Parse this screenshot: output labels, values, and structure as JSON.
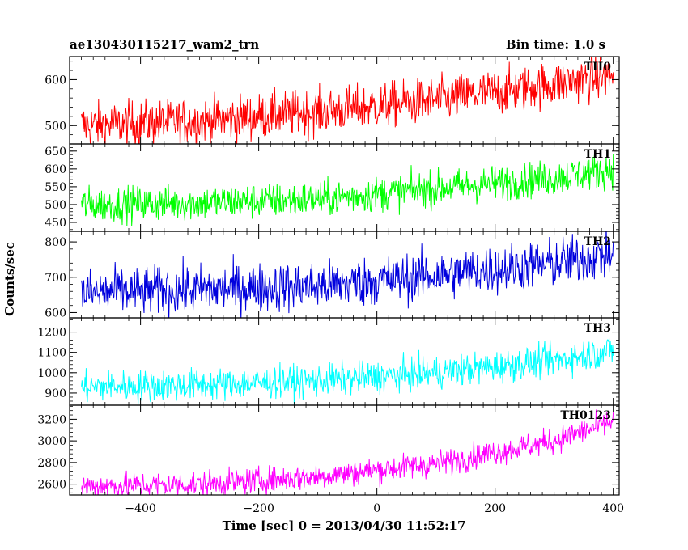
{
  "header": {
    "source_name": "ae130430115217_wam2_trn",
    "bin_time": "Bin time: 1.0 s"
  },
  "chart_data": {
    "type": "line",
    "xlabel": "Time [sec] 0 = 2013/04/30 11:52:17",
    "ylabel": "Counts/sec",
    "xlim": [
      -520,
      410
    ],
    "x_ticks": [
      -400,
      -200,
      0,
      200,
      400
    ],
    "x_tick_labels": [
      "−400",
      "−200",
      "0",
      "200",
      "400"
    ],
    "x_range": [
      -500,
      400
    ],
    "bin_time_s": 1.0,
    "grid": false,
    "legend": "none",
    "panels": [
      {
        "name": "TH0",
        "color": "#ff0000",
        "ylim": [
          460,
          650
        ],
        "y_ticks": [
          500,
          600
        ],
        "y_tick_labels": [
          "500",
          "600"
        ],
        "trend": [
          [
            -500,
            500
          ],
          [
            -300,
            510
          ],
          [
            -100,
            530
          ],
          [
            100,
            555
          ],
          [
            300,
            590
          ],
          [
            400,
            610
          ]
        ],
        "noise": 25
      },
      {
        "name": "TH1",
        "color": "#00ff00",
        "ylim": [
          425,
          670
        ],
        "y_ticks": [
          450,
          500,
          550,
          600,
          650
        ],
        "y_tick_labels": [
          "450",
          "500",
          "550",
          "600",
          "650"
        ],
        "trend": [
          [
            -500,
            500
          ],
          [
            -300,
            505
          ],
          [
            -100,
            515
          ],
          [
            100,
            545
          ],
          [
            300,
            575
          ],
          [
            400,
            600
          ]
        ],
        "noise": 25
      },
      {
        "name": "TH2",
        "color": "#0000dd",
        "ylim": [
          585,
          830
        ],
        "y_ticks": [
          600,
          700,
          800
        ],
        "y_tick_labels": [
          "600",
          "700",
          "800"
        ],
        "trend": [
          [
            -500,
            655
          ],
          [
            -300,
            665
          ],
          [
            -100,
            675
          ],
          [
            100,
            705
          ],
          [
            300,
            740
          ],
          [
            400,
            765
          ]
        ],
        "noise": 35
      },
      {
        "name": "TH3",
        "color": "#00ffff",
        "ylim": [
          840,
          1270
        ],
        "y_ticks": [
          900,
          1000,
          1100,
          1200
        ],
        "y_tick_labels": [
          "900",
          "1000",
          "1100",
          "1200"
        ],
        "trend": [
          [
            -500,
            930
          ],
          [
            -300,
            940
          ],
          [
            -100,
            960
          ],
          [
            100,
            1000
          ],
          [
            300,
            1060
          ],
          [
            400,
            1110
          ]
        ],
        "noise": 40
      },
      {
        "name": "TH0123",
        "color": "#ff00ff",
        "ylim": [
          2500,
          3330
        ],
        "y_ticks": [
          2600,
          2800,
          3000,
          3200
        ],
        "y_tick_labels": [
          "2600",
          "2800",
          "3000",
          "3200"
        ],
        "trend": [
          [
            -500,
            2580
          ],
          [
            -300,
            2600
          ],
          [
            -100,
            2670
          ],
          [
            100,
            2790
          ],
          [
            300,
            3000
          ],
          [
            400,
            3180
          ]
        ],
        "noise": 60
      }
    ]
  }
}
